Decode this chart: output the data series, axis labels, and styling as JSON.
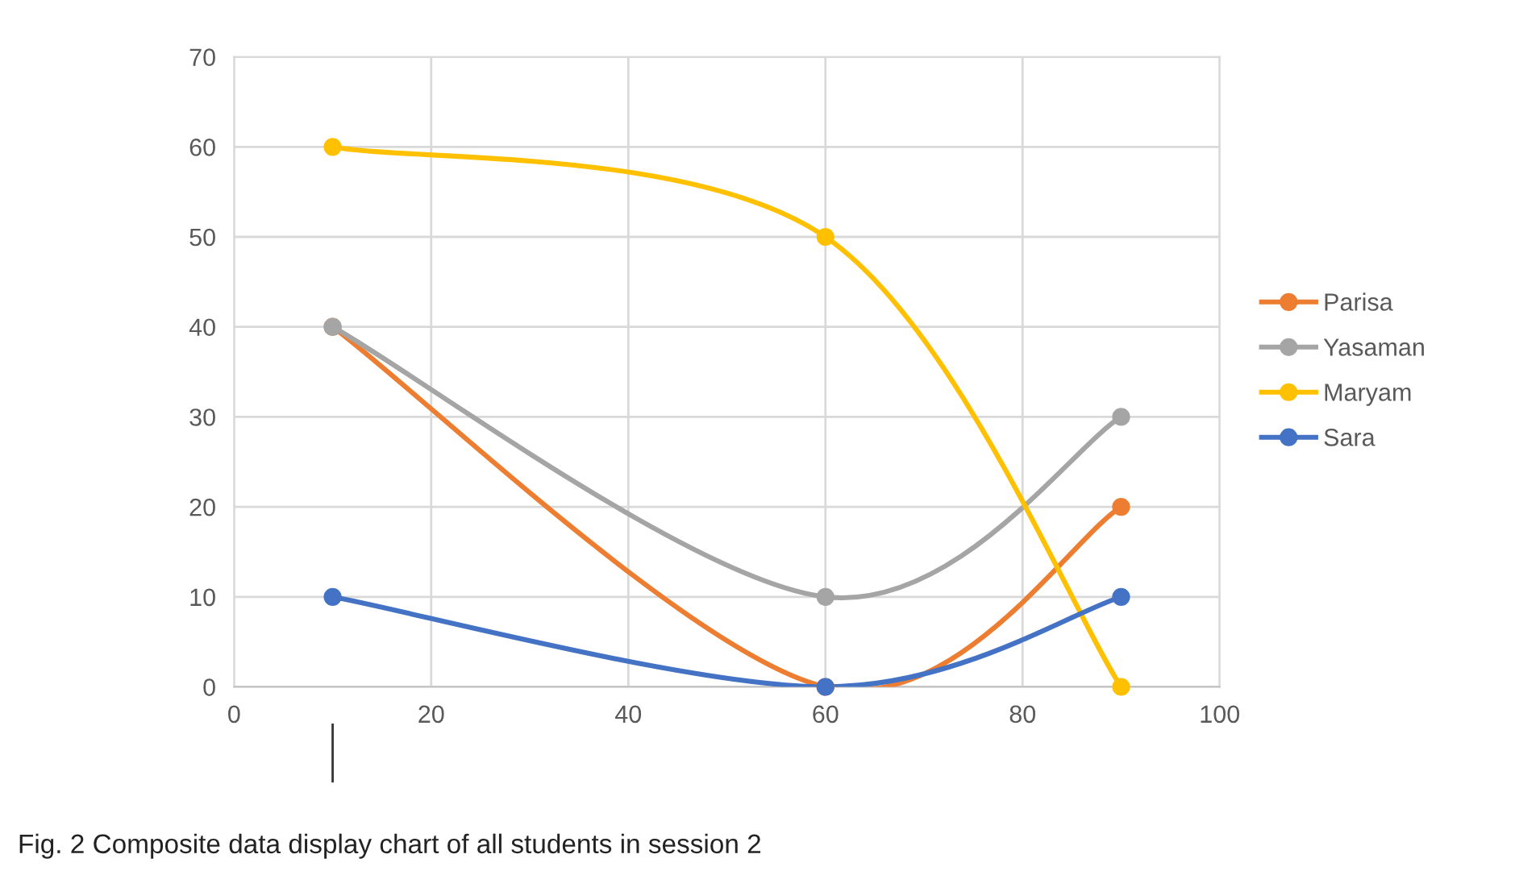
{
  "chart_data": {
    "type": "line",
    "x": [
      10,
      60,
      90
    ],
    "series": [
      {
        "name": "Parisa",
        "color": "#ed7d31",
        "values": [
          40,
          0,
          20
        ]
      },
      {
        "name": "Yasaman",
        "color": "#a5a5a5",
        "values": [
          40,
          10,
          30
        ]
      },
      {
        "name": "Maryam",
        "color": "#ffc000",
        "values": [
          60,
          50,
          0
        ]
      },
      {
        "name": "Sara",
        "color": "#4472c4",
        "values": [
          10,
          0,
          10
        ]
      }
    ],
    "xlim": [
      0,
      100
    ],
    "xticks": [
      0,
      20,
      40,
      60,
      80,
      100
    ],
    "ylim": [
      0,
      70
    ],
    "yticks": [
      0,
      10,
      20,
      30,
      40,
      50,
      60,
      70
    ],
    "grid": true,
    "legend": "right",
    "marker": "circle",
    "line_style": "solid",
    "annotations": [
      "Fig. 2 Composite data display chart of all students in session 2"
    ]
  }
}
